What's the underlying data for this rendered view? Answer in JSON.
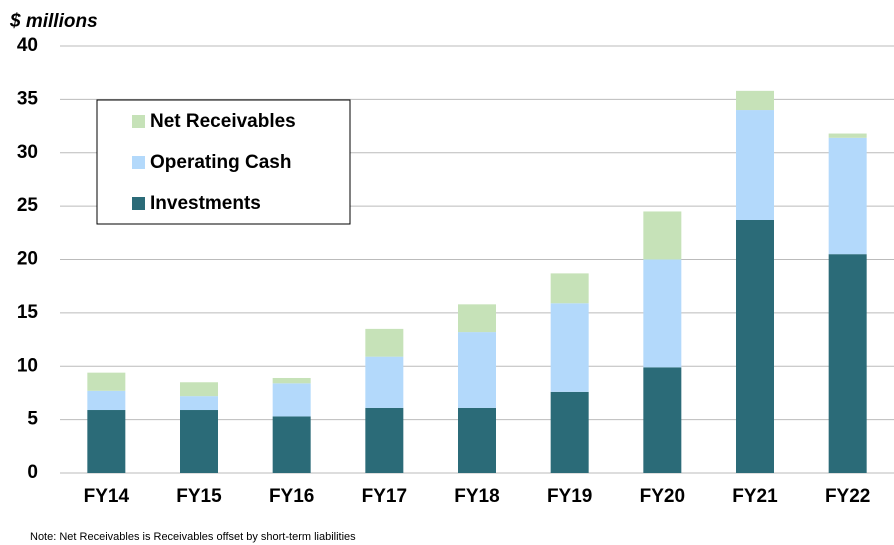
{
  "chart_data": {
    "type": "stacked_bar",
    "ylabel": "$ millions",
    "note": "Note:  Net Receivables is Receivables offset by short-term liabilities",
    "categories": [
      "FY14",
      "FY15",
      "FY16",
      "FY17",
      "FY18",
      "FY19",
      "FY20",
      "FY21",
      "FY22"
    ],
    "series": [
      {
        "name": "Investments",
        "color": "#2b6b78",
        "values": [
          5.9,
          5.9,
          5.3,
          6.1,
          6.1,
          7.6,
          9.9,
          23.7,
          20.5
        ]
      },
      {
        "name": "Operating Cash",
        "color": "#b3d9fb",
        "values": [
          1.8,
          1.3,
          3.1,
          4.8,
          7.1,
          8.3,
          10.1,
          10.3,
          10.9
        ]
      },
      {
        "name": "Net Receivables",
        "color": "#c6e2b8",
        "values": [
          1.7,
          1.3,
          0.5,
          2.6,
          2.6,
          2.8,
          4.5,
          1.8,
          0.4
        ]
      }
    ],
    "ylim": [
      0,
      40
    ],
    "yticks": [
      0,
      5,
      10,
      15,
      20,
      25,
      30,
      35,
      40
    ],
    "grid": true,
    "legend": "upper left"
  }
}
